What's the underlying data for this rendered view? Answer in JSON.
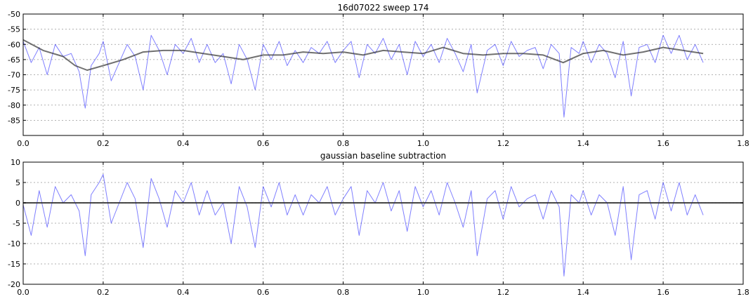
{
  "chart_data": [
    {
      "type": "line",
      "title": "16d07022 sweep 174",
      "xlim": [
        0.0,
        1.8
      ],
      "ylim": [
        -90,
        -50
      ],
      "x_ticks": [
        0.0,
        0.2,
        0.4,
        0.6,
        0.8,
        1.0,
        1.2,
        1.4,
        1.6,
        1.8
      ],
      "x_tick_labels": [
        "0.0",
        "0.2",
        "0.4",
        "0.6",
        "0.8",
        "1.0",
        "1.2",
        "1.4",
        "1.6",
        "1.8"
      ],
      "y_ticks": [
        -85,
        -80,
        -75,
        -70,
        -65,
        -60,
        -55,
        -50
      ],
      "y_tick_labels": [
        "-85",
        "-80",
        "-75",
        "-70",
        "-65",
        "-60",
        "-55",
        "-50"
      ],
      "grid": true,
      "series": [
        {
          "role": "raw-trace",
          "color": "#0000ff",
          "opacity": 0.5,
          "x": [
            0.0,
            0.02,
            0.04,
            0.06,
            0.08,
            0.1,
            0.12,
            0.14,
            0.155,
            0.17,
            0.19,
            0.2,
            0.22,
            0.24,
            0.26,
            0.28,
            0.3,
            0.32,
            0.34,
            0.36,
            0.38,
            0.4,
            0.42,
            0.44,
            0.46,
            0.48,
            0.5,
            0.52,
            0.54,
            0.56,
            0.58,
            0.6,
            0.62,
            0.64,
            0.66,
            0.68,
            0.7,
            0.72,
            0.74,
            0.76,
            0.78,
            0.8,
            0.82,
            0.84,
            0.86,
            0.88,
            0.9,
            0.92,
            0.94,
            0.96,
            0.98,
            1.0,
            1.02,
            1.04,
            1.06,
            1.08,
            1.1,
            1.12,
            1.135,
            1.16,
            1.18,
            1.2,
            1.22,
            1.24,
            1.26,
            1.28,
            1.3,
            1.32,
            1.34,
            1.352,
            1.37,
            1.39,
            1.4,
            1.42,
            1.44,
            1.46,
            1.48,
            1.5,
            1.52,
            1.54,
            1.56,
            1.58,
            1.6,
            1.62,
            1.64,
            1.66,
            1.68,
            1.7
          ],
          "y": [
            -59,
            -66,
            -61,
            -70,
            -60,
            -64,
            -63,
            -69,
            -81,
            -67,
            -63,
            -59,
            -72,
            -66,
            -60,
            -64,
            -75,
            -57,
            -62,
            -70,
            -60,
            -63,
            -58,
            -66,
            -60,
            -66,
            -63,
            -73,
            -60,
            -65,
            -75,
            -60,
            -65,
            -59,
            -67,
            -62,
            -66,
            -61,
            -63,
            -59,
            -66,
            -62,
            -59,
            -71,
            -60,
            -63,
            -58,
            -65,
            -60,
            -70,
            -59,
            -64,
            -60,
            -66,
            -58,
            -63,
            -69,
            -60,
            -76,
            -62,
            -60,
            -67,
            -59,
            -64,
            -62,
            -61,
            -68,
            -60,
            -63,
            -84,
            -61,
            -63,
            -59,
            -66,
            -60,
            -63,
            -71,
            -59,
            -77,
            -61,
            -60,
            -66,
            -57,
            -63,
            -57,
            -65,
            -60,
            -66
          ]
        },
        {
          "role": "gaussian-baseline",
          "color": "#333333",
          "opacity": 0.7,
          "x": [
            0.0,
            0.05,
            0.1,
            0.13,
            0.16,
            0.2,
            0.25,
            0.3,
            0.35,
            0.4,
            0.45,
            0.5,
            0.55,
            0.6,
            0.65,
            0.7,
            0.75,
            0.8,
            0.85,
            0.9,
            0.95,
            1.0,
            1.05,
            1.1,
            1.15,
            1.2,
            1.25,
            1.3,
            1.35,
            1.4,
            1.45,
            1.5,
            1.55,
            1.6,
            1.65,
            1.7
          ],
          "y": [
            -58.5,
            -62,
            -64,
            -67,
            -68.5,
            -67,
            -65,
            -62.5,
            -62,
            -62,
            -63,
            -64,
            -65,
            -63.5,
            -63.5,
            -62.5,
            -63,
            -62.5,
            -63.5,
            -62,
            -62.5,
            -63,
            -61,
            -63,
            -63.5,
            -63,
            -63,
            -63.5,
            -66,
            -63,
            -62,
            -63.5,
            -62.5,
            -61,
            -62,
            -63
          ]
        }
      ]
    },
    {
      "type": "line",
      "title": "gaussian baseline subtraction",
      "xlim": [
        0.0,
        1.8
      ],
      "ylim": [
        -20,
        10
      ],
      "x_ticks": [
        0.0,
        0.2,
        0.4,
        0.6,
        0.8,
        1.0,
        1.2,
        1.4,
        1.6,
        1.8
      ],
      "x_tick_labels": [
        "0.0",
        "0.2",
        "0.4",
        "0.6",
        "0.8",
        "1.0",
        "1.2",
        "1.4",
        "1.6",
        "1.8"
      ],
      "y_ticks": [
        -20,
        -15,
        -10,
        -5,
        0,
        5,
        10
      ],
      "y_tick_labels": [
        "-20",
        "-15",
        "-10",
        "-5",
        "0",
        "5",
        "10"
      ],
      "grid": true,
      "series": [
        {
          "role": "subtracted-trace",
          "color": "#0000ff",
          "opacity": 0.5,
          "x": [
            0.0,
            0.02,
            0.04,
            0.06,
            0.08,
            0.1,
            0.12,
            0.14,
            0.155,
            0.17,
            0.19,
            0.2,
            0.22,
            0.24,
            0.26,
            0.28,
            0.3,
            0.32,
            0.34,
            0.36,
            0.38,
            0.4,
            0.42,
            0.44,
            0.46,
            0.48,
            0.5,
            0.52,
            0.54,
            0.56,
            0.58,
            0.6,
            0.62,
            0.64,
            0.66,
            0.68,
            0.7,
            0.72,
            0.74,
            0.76,
            0.78,
            0.8,
            0.82,
            0.84,
            0.86,
            0.88,
            0.9,
            0.92,
            0.94,
            0.96,
            0.98,
            1.0,
            1.02,
            1.04,
            1.06,
            1.08,
            1.1,
            1.12,
            1.135,
            1.16,
            1.18,
            1.2,
            1.22,
            1.24,
            1.26,
            1.28,
            1.3,
            1.32,
            1.34,
            1.352,
            1.37,
            1.39,
            1.4,
            1.42,
            1.44,
            1.46,
            1.48,
            1.5,
            1.52,
            1.54,
            1.56,
            1.58,
            1.6,
            1.62,
            1.64,
            1.66,
            1.68,
            1.7
          ],
          "y": [
            -0.5,
            -8,
            3,
            -6,
            4,
            0,
            2,
            -2,
            -13,
            2,
            5,
            7,
            -5,
            0,
            5,
            1,
            -11,
            6,
            1,
            -6,
            3,
            0,
            5,
            -3,
            3,
            -3,
            0,
            -10,
            4,
            -1,
            -11,
            4,
            -1,
            5,
            -3,
            2,
            -3,
            2,
            0,
            4,
            -3,
            1,
            4,
            -8,
            3,
            0,
            5,
            -2,
            3,
            -7,
            4,
            -1,
            3,
            -3,
            5,
            0,
            -6,
            3,
            -13,
            1,
            3,
            -4,
            4,
            -1,
            1,
            2,
            -4,
            3,
            -1,
            -18,
            2,
            0,
            3,
            -3,
            2,
            0,
            -8,
            4,
            -14,
            2,
            3,
            -4,
            5,
            -2,
            5,
            -3,
            2,
            -3
          ]
        },
        {
          "role": "zero-line",
          "color": "#333333",
          "opacity": 0.9,
          "x": [
            0.0,
            1.8
          ],
          "y": [
            0,
            0
          ]
        }
      ]
    }
  ]
}
